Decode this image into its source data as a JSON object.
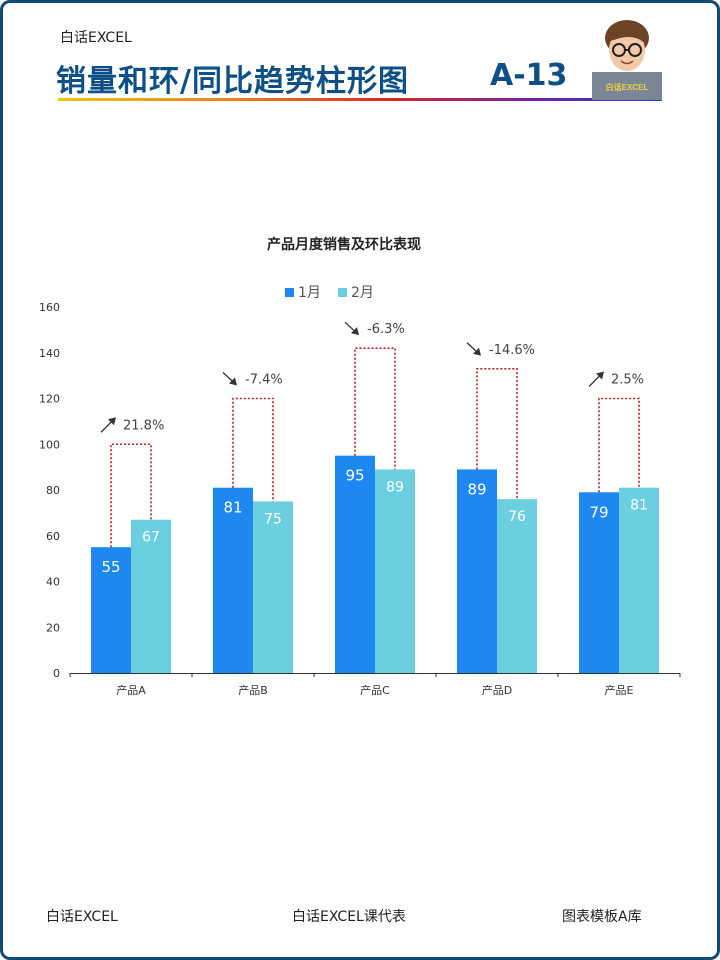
{
  "header": {
    "brand": "白话EXCEL",
    "title": "销量和环/同比趋势柱形图",
    "code": "A-13",
    "avatar_badge": "白话EXCEL"
  },
  "footer": {
    "left": "白话EXCEL",
    "center": "白话EXCEL课代表",
    "right": "图表模板A库"
  },
  "colors": {
    "jan": "#1E88F0",
    "feb": "#6BCFE0",
    "connector": "#B22222",
    "title_blue": "#0E4F86"
  },
  "chart_data": {
    "type": "bar",
    "title": "产品月度销售及环比表现",
    "xlabel": "",
    "ylabel": "",
    "categories": [
      "产品A",
      "产品B",
      "产品C",
      "产品D",
      "产品E"
    ],
    "series": [
      {
        "name": "1月",
        "values": [
          55,
          81,
          95,
          89,
          79
        ]
      },
      {
        "name": "2月",
        "values": [
          67,
          75,
          89,
          76,
          81
        ]
      }
    ],
    "annotations": [
      {
        "text": "21.8%",
        "trend": "up",
        "top": 100
      },
      {
        "text": "-7.4%",
        "trend": "down",
        "top": 120
      },
      {
        "text": "-6.3%",
        "trend": "down",
        "top": 142
      },
      {
        "text": "-14.6%",
        "trend": "down",
        "top": 133
      },
      {
        "text": "2.5%",
        "trend": "up",
        "top": 120
      }
    ],
    "ylim": [
      0,
      160
    ],
    "yticks": [
      0,
      20,
      40,
      60,
      80,
      100,
      120,
      140,
      160
    ],
    "legend_position": "top",
    "grid": false
  }
}
